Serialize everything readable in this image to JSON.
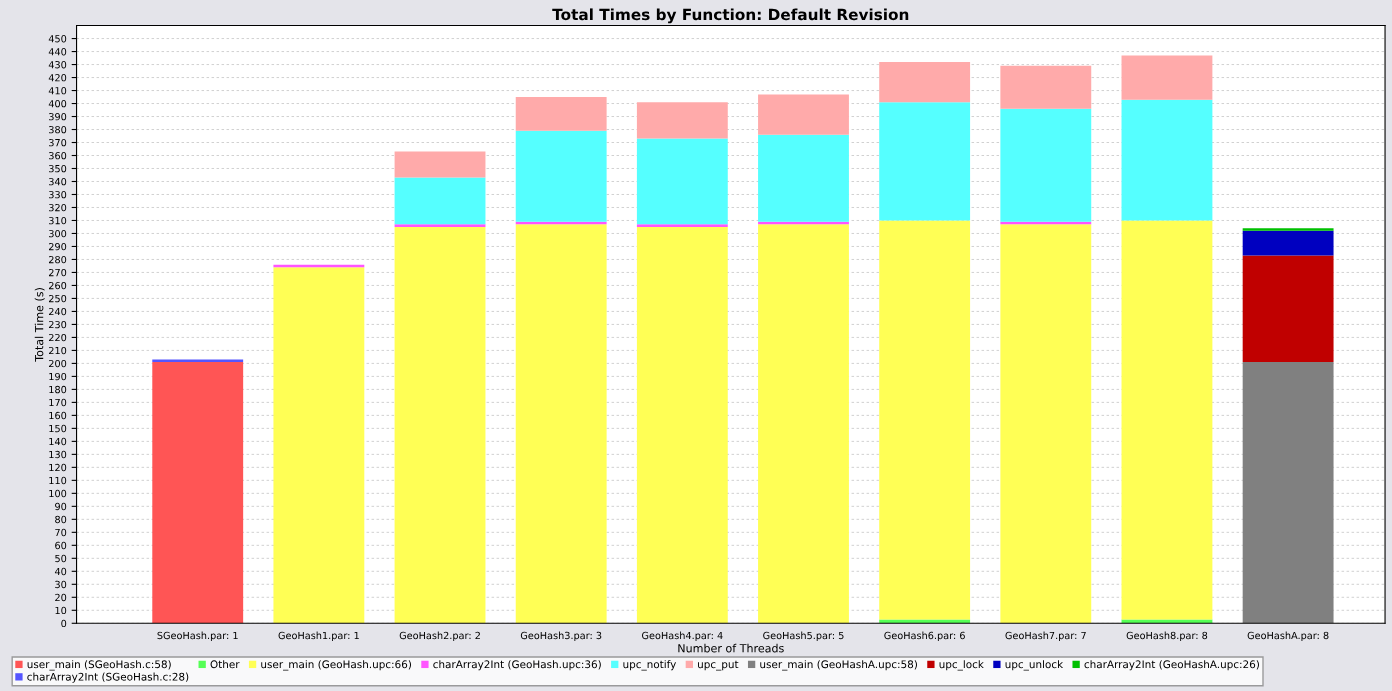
{
  "chart_data": {
    "type": "bar",
    "stacked": true,
    "title": "Total Times by Function: Default Revision",
    "xlabel": "Number of Threads",
    "ylabel": "Total Time (s)",
    "categories": [
      "SGeoHash.par: 1",
      "GeoHash1.par: 1",
      "GeoHash2.par: 2",
      "GeoHash3.par: 3",
      "GeoHash4.par: 4",
      "GeoHash5.par: 5",
      "GeoHash6.par: 6",
      "GeoHash7.par: 7",
      "GeoHash8.par: 8",
      "GeoHashA.par: 8"
    ],
    "series": [
      {
        "name": "user_main (SGeoHash.c:58)",
        "color": "#ff5555",
        "values": [
          201,
          null,
          null,
          null,
          null,
          null,
          null,
          null,
          null,
          null
        ]
      },
      {
        "name": "charArray2Int (SGeoHash.c:28)",
        "color": "#5555ff",
        "values": [
          2,
          null,
          null,
          null,
          null,
          null,
          null,
          null,
          null,
          null
        ]
      },
      {
        "name": "Other",
        "color": "#55ff55",
        "values": [
          null,
          null,
          null,
          null,
          null,
          null,
          3,
          null,
          3,
          null
        ]
      },
      {
        "name": "user_main (GeoHash.upc:66)",
        "color": "#ffff55",
        "values": [
          null,
          274,
          305,
          307,
          305,
          307,
          307,
          307,
          307,
          null
        ]
      },
      {
        "name": "charArray2Int (GeoHash.upc:36)",
        "color": "#ff55ff",
        "values": [
          null,
          2,
          2,
          2,
          2,
          2,
          null,
          2,
          null,
          null
        ]
      },
      {
        "name": "upc_notify",
        "color": "#55ffff",
        "values": [
          null,
          null,
          36,
          70,
          66,
          67,
          91,
          87,
          93,
          null
        ]
      },
      {
        "name": "upc_put",
        "color": "#ffaaaa",
        "values": [
          null,
          null,
          20,
          26,
          28,
          31,
          31,
          33,
          34,
          null
        ]
      },
      {
        "name": "user_main (GeoHashA.upc:58)",
        "color": "#808080",
        "values": [
          null,
          null,
          null,
          null,
          null,
          null,
          null,
          null,
          null,
          201
        ]
      },
      {
        "name": "upc_lock",
        "color": "#c00000",
        "values": [
          null,
          null,
          null,
          null,
          null,
          null,
          null,
          null,
          null,
          82
        ]
      },
      {
        "name": "upc_unlock",
        "color": "#0000c0",
        "values": [
          null,
          null,
          null,
          null,
          null,
          null,
          null,
          null,
          null,
          19
        ]
      },
      {
        "name": "charArray2Int (GeoHashA.upc:26)",
        "color": "#00c000",
        "values": [
          null,
          null,
          null,
          null,
          null,
          null,
          null,
          null,
          null,
          2
        ]
      }
    ],
    "ylim": [
      0,
      460
    ],
    "yticks": [
      0,
      10,
      20,
      30,
      40,
      50,
      60,
      70,
      80,
      90,
      100,
      110,
      120,
      130,
      140,
      150,
      160,
      170,
      180,
      190,
      200,
      210,
      220,
      230,
      240,
      250,
      260,
      270,
      280,
      290,
      300,
      310,
      320,
      330,
      340,
      350,
      360,
      370,
      380,
      390,
      400,
      410,
      420,
      430,
      440,
      450
    ],
    "grid": "y",
    "legend": "bottom"
  }
}
